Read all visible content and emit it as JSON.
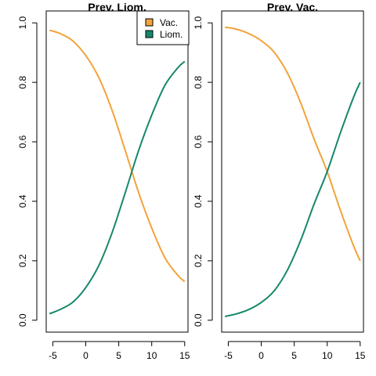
{
  "chart_data": [
    {
      "type": "line",
      "title": "Prev. Liom.",
      "xlabel": "",
      "ylabel": "",
      "xlim": [
        -6,
        15.5
      ],
      "ylim": [
        -0.04,
        1.04
      ],
      "x_ticks": [
        -5,
        0,
        5,
        10,
        15
      ],
      "y_ticks": [
        0.0,
        0.2,
        0.4,
        0.6,
        0.8,
        1.0
      ],
      "x_tick_labels": [
        "-5",
        "0",
        "5",
        "10",
        "15"
      ],
      "y_tick_labels": [
        "0.0",
        "0.2",
        "0.4",
        "0.6",
        "0.8",
        "1.0"
      ],
      "legend": {
        "position": "top-right",
        "entries": [
          {
            "name": "Vac.",
            "color": "#f3a33a"
          },
          {
            "name": "Liom.",
            "color": "#16876b"
          }
        ]
      },
      "series": [
        {
          "name": "Vac.",
          "color": "#f3a33a",
          "x": [
            -5.5,
            -4,
            -2,
            0,
            2,
            4,
            6,
            8,
            10,
            12,
            14,
            15
          ],
          "values": [
            0.975,
            0.965,
            0.94,
            0.89,
            0.815,
            0.705,
            0.57,
            0.43,
            0.31,
            0.21,
            0.15,
            0.13
          ]
        },
        {
          "name": "Liom.",
          "color": "#16876b",
          "x": [
            -5.5,
            -4,
            -2,
            0,
            2,
            4,
            6,
            8,
            10,
            12,
            14,
            15
          ],
          "values": [
            0.022,
            0.035,
            0.06,
            0.11,
            0.185,
            0.295,
            0.43,
            0.57,
            0.69,
            0.79,
            0.85,
            0.87
          ]
        }
      ]
    },
    {
      "type": "line",
      "title": "Prev. Vac.",
      "xlabel": "",
      "ylabel": "",
      "xlim": [
        -6,
        15.5
      ],
      "ylim": [
        -0.04,
        1.04
      ],
      "x_ticks": [
        -5,
        0,
        5,
        10,
        15
      ],
      "y_ticks": [
        0.0,
        0.2,
        0.4,
        0.6,
        0.8,
        1.0
      ],
      "x_tick_labels": [
        "-5",
        "0",
        "5",
        "10",
        "15"
      ],
      "y_tick_labels": [
        "0.0",
        "0.2",
        "0.4",
        "0.6",
        "0.8",
        "1.0"
      ],
      "series": [
        {
          "name": "Vac.",
          "color": "#f3a33a",
          "x": [
            -5.5,
            -4,
            -2,
            0,
            2,
            4,
            6,
            8,
            10,
            12,
            14,
            15
          ],
          "values": [
            0.985,
            0.98,
            0.965,
            0.94,
            0.9,
            0.83,
            0.73,
            0.61,
            0.5,
            0.37,
            0.25,
            0.2
          ]
        },
        {
          "name": "Liom.",
          "color": "#16876b",
          "x": [
            -5.5,
            -4,
            -2,
            0,
            2,
            4,
            6,
            8,
            10,
            12,
            14,
            15
          ],
          "values": [
            0.013,
            0.02,
            0.035,
            0.06,
            0.1,
            0.17,
            0.27,
            0.39,
            0.5,
            0.63,
            0.75,
            0.8
          ]
        }
      ]
    }
  ]
}
